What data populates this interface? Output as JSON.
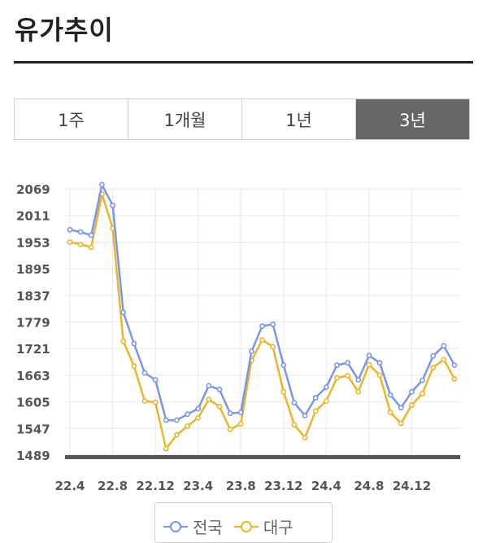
{
  "header": {
    "title": "유가추이"
  },
  "tabs": [
    {
      "label": "1주",
      "active": false
    },
    {
      "label": "1개월",
      "active": false
    },
    {
      "label": "1년",
      "active": false
    },
    {
      "label": "3년",
      "active": true
    }
  ],
  "colors": {
    "national": "#7b96e8",
    "daegu": "#e8b52c",
    "baseline": "#555555",
    "grid": "#e8e8e8",
    "tab_active_bg": "#666666"
  },
  "chart_data": {
    "type": "line",
    "y_ticks": [
      "2069",
      "2011",
      "1953",
      "1895",
      "1837",
      "1779",
      "1721",
      "1663",
      "1605",
      "1547",
      "1489"
    ],
    "ylim": [
      1489,
      2069
    ],
    "x_tick_labels": [
      {
        "label": "22.4",
        "index": 0
      },
      {
        "label": "22.8",
        "index": 4
      },
      {
        "label": "22.12",
        "index": 8
      },
      {
        "label": "23.4",
        "index": 12
      },
      {
        "label": "23.8",
        "index": 16
      },
      {
        "label": "23.12",
        "index": 20
      },
      {
        "label": "24.4",
        "index": 24
      },
      {
        "label": "24.8",
        "index": 28
      },
      {
        "label": "24.12",
        "index": 32
      }
    ],
    "x_count": 37,
    "grid": true,
    "legend_position": "bottom-center",
    "series": [
      {
        "name": "전국",
        "color": "#7b96e8",
        "values": [
          1980,
          1975,
          1968,
          2078,
          2033,
          1800,
          1732,
          1668,
          1653,
          1565,
          1565,
          1578,
          1590,
          1640,
          1632,
          1580,
          1582,
          1715,
          1770,
          1774,
          1685,
          1603,
          1575,
          1614,
          1637,
          1685,
          1690,
          1653,
          1706,
          1690,
          1620,
          1592,
          1627,
          1652,
          1705,
          1727,
          1685
        ]
      },
      {
        "name": "대구",
        "color": "#e8b52c",
        "values": [
          1953,
          1948,
          1942,
          2058,
          1983,
          1737,
          1683,
          1607,
          1604,
          1503,
          1533,
          1552,
          1570,
          1610,
          1595,
          1545,
          1557,
          1695,
          1740,
          1725,
          1627,
          1555,
          1527,
          1585,
          1607,
          1657,
          1662,
          1627,
          1686,
          1663,
          1582,
          1558,
          1598,
          1623,
          1680,
          1697,
          1655
        ]
      }
    ]
  }
}
